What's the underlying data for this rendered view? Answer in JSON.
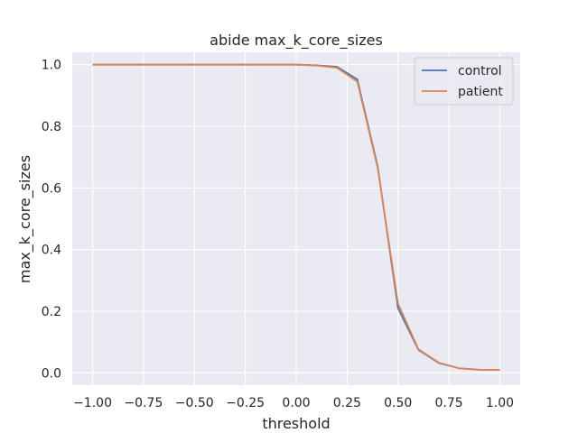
{
  "chart_data": {
    "type": "line",
    "title": "abide max_k_core_sizes",
    "xlabel": "threshold",
    "ylabel": "max_k_core_sizes",
    "xlim": [
      -1.1,
      1.1
    ],
    "ylim": [
      -0.04,
      1.04
    ],
    "xticks": [
      -1.0,
      -0.75,
      -0.5,
      -0.25,
      0.0,
      0.25,
      0.5,
      0.75,
      1.0
    ],
    "xtick_labels": [
      "−1.00",
      "−0.75",
      "−0.50",
      "−0.25",
      "0.00",
      "0.25",
      "0.50",
      "0.75",
      "1.00"
    ],
    "yticks": [
      0.0,
      0.2,
      0.4,
      0.6,
      0.8,
      1.0
    ],
    "ytick_labels": [
      "0.0",
      "0.2",
      "0.4",
      "0.6",
      "0.8",
      "1.0"
    ],
    "grid": true,
    "legend_position": "top-right",
    "background": "#eaeaf2",
    "x": [
      -1.0,
      -0.9,
      -0.8,
      -0.7,
      -0.6,
      -0.5,
      -0.4,
      -0.3,
      -0.2,
      -0.1,
      0.0,
      0.1,
      0.2,
      0.3,
      0.4,
      0.5,
      0.6,
      0.7,
      0.8,
      0.9,
      1.0
    ],
    "series": [
      {
        "name": "control",
        "color": "#4c72b0",
        "values": [
          1.0,
          1.0,
          1.0,
          1.0,
          1.0,
          1.0,
          1.0,
          1.0,
          1.0,
          1.0,
          1.0,
          0.998,
          0.993,
          0.952,
          0.67,
          0.21,
          0.075,
          0.032,
          0.015,
          0.01,
          0.01
        ]
      },
      {
        "name": "patient",
        "color": "#dd8452",
        "values": [
          1.0,
          1.0,
          1.0,
          1.0,
          1.0,
          1.0,
          1.0,
          1.0,
          1.0,
          1.0,
          1.0,
          0.997,
          0.99,
          0.945,
          0.665,
          0.225,
          0.077,
          0.033,
          0.015,
          0.01,
          0.01
        ]
      }
    ]
  }
}
